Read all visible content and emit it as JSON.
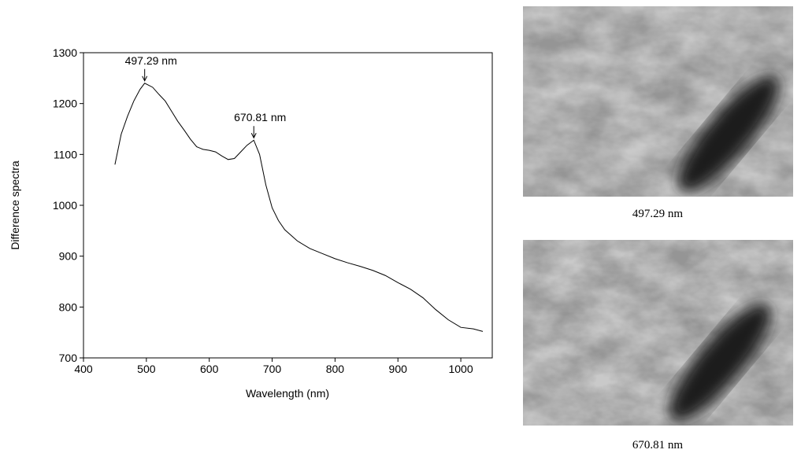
{
  "chart_data": {
    "type": "line",
    "xlabel": "Wavelength (nm)",
    "ylabel": "Difference spectra",
    "x": [
      450,
      455,
      460,
      470,
      480,
      490,
      497.29,
      510,
      520,
      530,
      540,
      550,
      560,
      570,
      580,
      590,
      600,
      610,
      620,
      630,
      640,
      650,
      660,
      670.81,
      680,
      690,
      700,
      710,
      720,
      740,
      760,
      780,
      800,
      820,
      840,
      860,
      880,
      900,
      920,
      940,
      960,
      980,
      1000,
      1020,
      1035
    ],
    "values": [
      1080,
      1110,
      1140,
      1175,
      1205,
      1228,
      1240,
      1232,
      1218,
      1205,
      1185,
      1165,
      1148,
      1130,
      1115,
      1110,
      1108,
      1105,
      1097,
      1090,
      1092,
      1105,
      1118,
      1128,
      1100,
      1040,
      995,
      970,
      952,
      930,
      915,
      905,
      895,
      887,
      880,
      872,
      862,
      848,
      835,
      818,
      795,
      775,
      760,
      757,
      752
    ],
    "color": "#000000",
    "xlim": [
      400,
      1050
    ],
    "ylim": [
      700,
      1300
    ],
    "xticks": [
      400,
      500,
      600,
      700,
      800,
      900,
      1000
    ],
    "yticks": [
      700,
      800,
      900,
      1000,
      1100,
      1200,
      1300
    ],
    "annotations": [
      {
        "text": "497.29 nm",
        "x": 497.29,
        "y": 1240
      },
      {
        "text": "670.81 nm",
        "x": 670.81,
        "y": 1128
      }
    ]
  },
  "images": [
    {
      "caption": "497.29 nm"
    },
    {
      "caption": "670.81 nm"
    }
  ]
}
